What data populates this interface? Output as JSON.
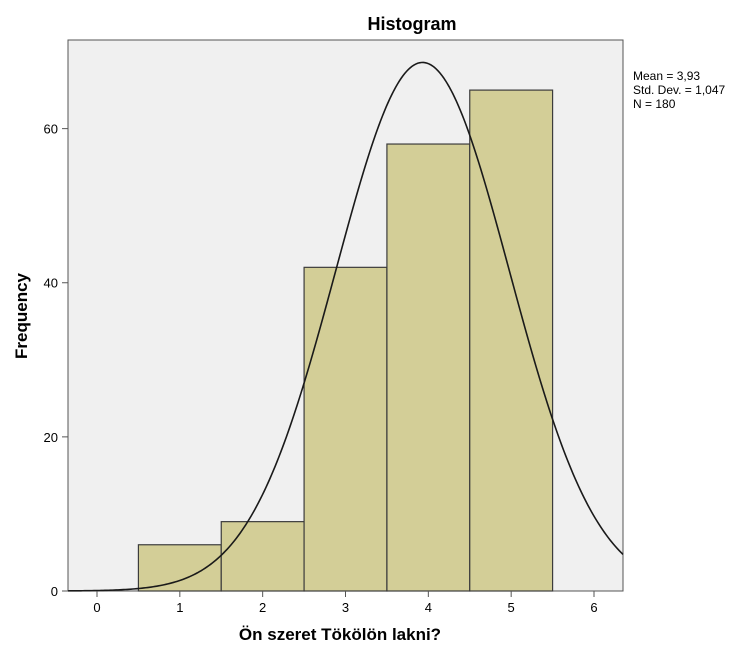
{
  "chart_data": {
    "type": "bar",
    "title": "Histogram",
    "xlabel": "Ön szeret Tökölön lakni?",
    "ylabel": "Frequency",
    "bins": [
      {
        "center": 1,
        "start": 0.5,
        "end": 1.5,
        "value": 6
      },
      {
        "center": 2,
        "start": 1.5,
        "end": 2.5,
        "value": 9
      },
      {
        "center": 3,
        "start": 2.5,
        "end": 3.5,
        "value": 42
      },
      {
        "center": 4,
        "start": 3.5,
        "end": 4.5,
        "value": 58
      },
      {
        "center": 5,
        "start": 4.5,
        "end": 5.5,
        "value": 65
      }
    ],
    "xlim": [
      -0.35,
      6.35
    ],
    "ylim": [
      0,
      71.5
    ],
    "x_ticks": [
      0,
      1,
      2,
      3,
      4,
      5,
      6
    ],
    "y_ticks": [
      0,
      20,
      40,
      60
    ],
    "normal_curve": {
      "mean": 3.93,
      "std": 1.047,
      "n": 180,
      "bin_width": 1
    },
    "stats": [
      "Mean = 3,93",
      "Std. Dev. = 1,047",
      "N = 180"
    ],
    "colors": {
      "plot_bg": "#f0f0f0",
      "bar_fill": "#d3ce97",
      "bar_stroke": "#3c3c3c",
      "curve": "#1a1a1a"
    }
  }
}
